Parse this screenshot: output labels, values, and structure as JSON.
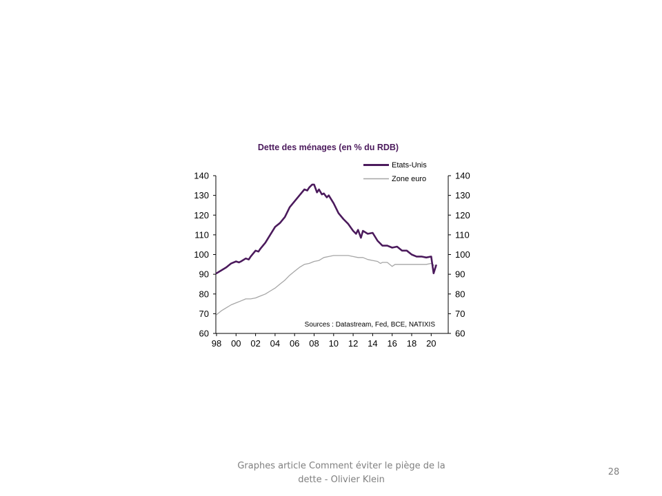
{
  "slide": {
    "footer_caption": "Graphes article Comment  éviter le piège de la dette - Olivier Klein",
    "page_number": "28"
  },
  "chart_data": {
    "type": "line",
    "title": "Dette des ménages (en % du RDB)",
    "xlabel": "",
    "ylabel": "",
    "x_ticks": [
      "98",
      "00",
      "02",
      "04",
      "06",
      "08",
      "10",
      "12",
      "14",
      "16",
      "18",
      "20"
    ],
    "y_ticks": [
      60,
      70,
      80,
      90,
      100,
      110,
      120,
      130,
      140
    ],
    "y_ticks_right": [
      60,
      70,
      80,
      90,
      100,
      110,
      120,
      130,
      140
    ],
    "xlim": [
      1998,
      2020.7
    ],
    "ylim": [
      60,
      140
    ],
    "grid": false,
    "legend_position": "top-right",
    "annotation": "Sources : Datastream,  Fed, BCE, NATIXIS",
    "colors": {
      "Etats-Unis": "#4b1a5c",
      "Zone euro": "#a6a6a6"
    },
    "series": [
      {
        "name": "Etats-Unis",
        "x": [
          1998.0,
          1998.5,
          1999.0,
          1999.5,
          2000.0,
          2000.3,
          2000.5,
          2001.0,
          2001.3,
          2001.5,
          2002.0,
          2002.3,
          2002.5,
          2003.0,
          2003.5,
          2004.0,
          2004.5,
          2005.0,
          2005.5,
          2006.0,
          2006.5,
          2007.0,
          2007.3,
          2007.5,
          2007.8,
          2008.0,
          2008.3,
          2008.5,
          2008.8,
          2009.0,
          2009.3,
          2009.5,
          2010.0,
          2010.5,
          2011.0,
          2011.5,
          2012.0,
          2012.3,
          2012.5,
          2012.8,
          2013.0,
          2013.5,
          2014.0,
          2014.5,
          2015.0,
          2015.5,
          2016.0,
          2016.5,
          2017.0,
          2017.5,
          2018.0,
          2018.5,
          2019.0,
          2019.5,
          2020.0,
          2020.25,
          2020.5
        ],
        "y": [
          90.5,
          92,
          93.5,
          95.5,
          96.5,
          96,
          96.5,
          98,
          97.5,
          99,
          102,
          101.5,
          103,
          106,
          110,
          114,
          116,
          119,
          124,
          127,
          130,
          133,
          132.5,
          134,
          135.5,
          135.5,
          131.5,
          133,
          130.5,
          131,
          129,
          130,
          126,
          121,
          118,
          115.5,
          112,
          110.5,
          112.5,
          108.5,
          112,
          110.5,
          111,
          107,
          104.5,
          104.5,
          103.5,
          104,
          102,
          102,
          100,
          99,
          99,
          98.5,
          99,
          90.5,
          94.5
        ]
      },
      {
        "name": "Zone euro",
        "x": [
          1998.0,
          1998.5,
          1999.0,
          1999.5,
          2000.0,
          2000.5,
          2001.0,
          2001.5,
          2002.0,
          2002.5,
          2003.0,
          2003.5,
          2004.0,
          2004.5,
          2005.0,
          2005.5,
          2006.0,
          2006.5,
          2007.0,
          2007.5,
          2008.0,
          2008.5,
          2009.0,
          2009.5,
          2010.0,
          2010.5,
          2011.0,
          2011.5,
          2012.0,
          2012.5,
          2013.0,
          2013.5,
          2014.0,
          2014.5,
          2014.8,
          2015.0,
          2015.5,
          2016.0,
          2016.3,
          2016.5,
          2017.0,
          2017.5,
          2018.0,
          2018.5,
          2019.0,
          2019.5,
          2020.0,
          2020.3
        ],
        "y": [
          69.5,
          71.5,
          73,
          74.5,
          75.5,
          76.5,
          77.5,
          77.5,
          78,
          79,
          80,
          81.5,
          83,
          85,
          87,
          89.5,
          91.5,
          93.5,
          95,
          95.5,
          96.5,
          97,
          98.5,
          99,
          99.5,
          99.5,
          99.5,
          99.5,
          99,
          98.5,
          98.5,
          97.5,
          97,
          96.5,
          95.5,
          96,
          96,
          94,
          95,
          95,
          95,
          95,
          95,
          95,
          95,
          95,
          95.5,
          94.5
        ]
      }
    ]
  }
}
